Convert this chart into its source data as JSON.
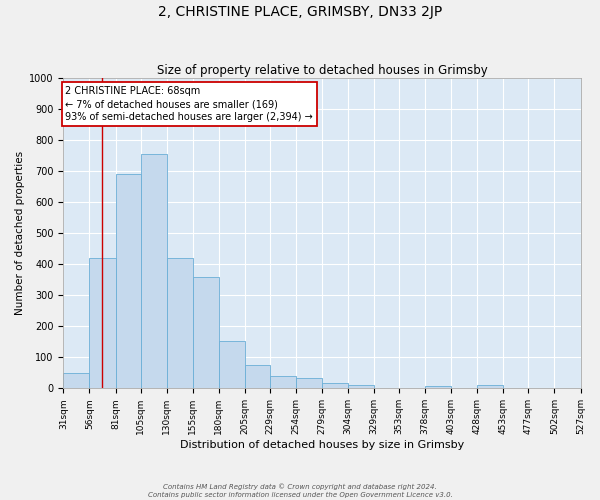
{
  "title": "2, CHRISTINE PLACE, GRIMSBY, DN33 2JP",
  "subtitle": "Size of property relative to detached houses in Grimsby",
  "xlabel": "Distribution of detached houses by size in Grimsby",
  "ylabel": "Number of detached properties",
  "bar_color": "#c5d9ed",
  "bar_edge_color": "#6aaed6",
  "background_color": "#dce9f5",
  "grid_color": "#ffffff",
  "bins": [
    31,
    56,
    81,
    105,
    130,
    155,
    180,
    205,
    229,
    254,
    279,
    304,
    329,
    353,
    378,
    403,
    428,
    453,
    477,
    502,
    527
  ],
  "bar_labels": [
    "31sqm",
    "56sqm",
    "81sqm",
    "105sqm",
    "130sqm",
    "155sqm",
    "180sqm",
    "205sqm",
    "229sqm",
    "254sqm",
    "279sqm",
    "304sqm",
    "329sqm",
    "353sqm",
    "378sqm",
    "403sqm",
    "428sqm",
    "453sqm",
    "477sqm",
    "502sqm",
    "527sqm"
  ],
  "values": [
    50,
    420,
    690,
    755,
    420,
    360,
    153,
    75,
    40,
    32,
    18,
    10,
    0,
    0,
    8,
    0,
    10,
    0,
    0,
    0,
    0
  ],
  "ylim": [
    0,
    1000
  ],
  "yticks": [
    0,
    100,
    200,
    300,
    400,
    500,
    600,
    700,
    800,
    900,
    1000
  ],
  "annotation_title": "2 CHRISTINE PLACE: 68sqm",
  "annotation_line1": "← 7% of detached houses are smaller (169)",
  "annotation_line2": "93% of semi-detached houses are larger (2,394) →",
  "annotation_box_color": "#ffffff",
  "annotation_border_color": "#cc0000",
  "red_line_x": 68,
  "footer1": "Contains HM Land Registry data © Crown copyright and database right 2024.",
  "footer2": "Contains public sector information licensed under the Open Government Licence v3.0."
}
